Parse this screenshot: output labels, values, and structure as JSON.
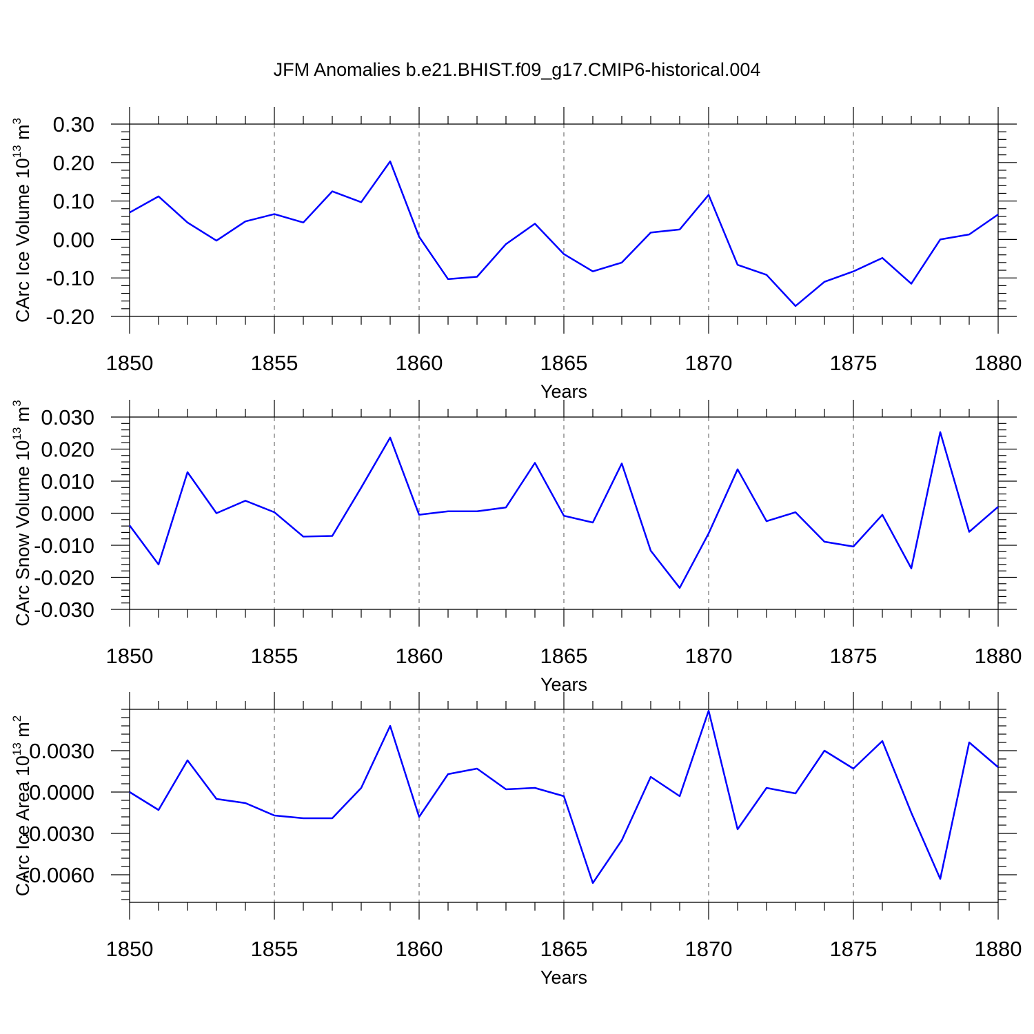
{
  "title": "JFM Anomalies b.e21.BHIST.f09_g17.CMIP6-historical.004",
  "colors": {
    "line": "#0000ff",
    "axis": "#000000",
    "grid": "#555555"
  },
  "chart_data": [
    {
      "type": "line",
      "title": "",
      "xlabel": "Years",
      "ylabel": "CArc Ice Volume 10",
      "ylabel_exp": "13",
      "ylabel_unit": "m",
      "ylabel_unit_exp": "3",
      "xlim": [
        1850,
        1880
      ],
      "ylim": [
        -0.2,
        0.3
      ],
      "xticks": [
        "1850",
        "1855",
        "1860",
        "1865",
        "1870",
        "1875",
        "1880"
      ],
      "yticks": [
        {
          "v": 0.3,
          "label": "0.30"
        },
        {
          "v": 0.2,
          "label": "0.20"
        },
        {
          "v": 0.1,
          "label": "0.10"
        },
        {
          "v": 0.0,
          "label": "0.00"
        },
        {
          "v": -0.1,
          "label": "-0.10"
        },
        {
          "v": -0.2,
          "label": "-0.20"
        }
      ],
      "grid": "vertical dashed at major x ticks",
      "x": [
        1850,
        1851,
        1852,
        1853,
        1854,
        1855,
        1856,
        1857,
        1858,
        1859,
        1860,
        1861,
        1862,
        1863,
        1864,
        1865,
        1866,
        1867,
        1868,
        1869,
        1870,
        1871,
        1872,
        1873,
        1874,
        1875,
        1876,
        1877,
        1878,
        1879,
        1880
      ],
      "series": [
        {
          "values": [
            0.07,
            0.112,
            0.044,
            -0.003,
            0.047,
            0.066,
            0.044,
            0.125,
            0.097,
            0.203,
            0.007,
            -0.103,
            -0.097,
            -0.012,
            0.041,
            -0.038,
            -0.083,
            -0.06,
            0.018,
            0.026,
            0.116,
            -0.066,
            -0.092,
            -0.173,
            -0.11,
            -0.083,
            -0.048,
            -0.115,
            0.0,
            0.013,
            0.065
          ]
        }
      ]
    },
    {
      "type": "line",
      "title": "",
      "xlabel": "Years",
      "ylabel": "CArc Snow Volume 10",
      "ylabel_exp": "13",
      "ylabel_unit": "m",
      "ylabel_unit_exp": "3",
      "xlim": [
        1850,
        1880
      ],
      "ylim": [
        -0.03,
        0.03
      ],
      "xticks": [
        "1850",
        "1855",
        "1860",
        "1865",
        "1870",
        "1875",
        "1880"
      ],
      "yticks": [
        {
          "v": 0.03,
          "label": "0.030"
        },
        {
          "v": 0.02,
          "label": "0.020"
        },
        {
          "v": 0.01,
          "label": "0.010"
        },
        {
          "v": 0.0,
          "label": "0.000"
        },
        {
          "v": -0.01,
          "label": "-0.010"
        },
        {
          "v": -0.02,
          "label": "-0.020"
        },
        {
          "v": -0.03,
          "label": "-0.030"
        }
      ],
      "grid": "vertical dashed at major x ticks",
      "x": [
        1850,
        1851,
        1852,
        1853,
        1854,
        1855,
        1856,
        1857,
        1858,
        1859,
        1860,
        1861,
        1862,
        1863,
        1864,
        1865,
        1866,
        1867,
        1868,
        1869,
        1870,
        1871,
        1872,
        1873,
        1874,
        1875,
        1876,
        1877,
        1878,
        1879,
        1880
      ],
      "series": [
        {
          "values": [
            -0.0038,
            -0.016,
            0.0128,
            0.0,
            0.0039,
            0.0003,
            -0.0073,
            -0.0071,
            0.008,
            0.0236,
            -0.0005,
            0.0006,
            0.0006,
            0.0018,
            0.0157,
            -0.0008,
            -0.0029,
            0.0155,
            -0.0117,
            -0.0233,
            -0.0063,
            0.0137,
            -0.0025,
            0.0003,
            -0.0089,
            -0.0104,
            -0.0005,
            -0.0172,
            0.0253,
            -0.0058,
            0.002
          ]
        }
      ]
    },
    {
      "type": "line",
      "title": "",
      "xlabel": "Years",
      "ylabel": "CArc Ice Area 10",
      "ylabel_exp": "13",
      "ylabel_unit": "m",
      "ylabel_unit_exp": "2",
      "xlim": [
        1850,
        1880
      ],
      "ylim": [
        -0.008,
        0.006
      ],
      "xticks": [
        "1850",
        "1855",
        "1860",
        "1865",
        "1870",
        "1875",
        "1880"
      ],
      "yticks": [
        {
          "v": 0.003,
          "label": "0.0030"
        },
        {
          "v": 0.0,
          "label": "0.0000"
        },
        {
          "v": -0.003,
          "label": "-0.0030"
        },
        {
          "v": -0.006,
          "label": "-0.0060"
        }
      ],
      "grid": "vertical dashed at major x ticks",
      "x": [
        1850,
        1851,
        1852,
        1853,
        1854,
        1855,
        1856,
        1857,
        1858,
        1859,
        1860,
        1861,
        1862,
        1863,
        1864,
        1865,
        1866,
        1867,
        1868,
        1869,
        1870,
        1871,
        1872,
        1873,
        1874,
        1875,
        1876,
        1877,
        1878,
        1879,
        1880
      ],
      "series": [
        {
          "values": [
            0.0,
            -0.0013,
            0.0023,
            -0.0005,
            -0.0008,
            -0.0017,
            -0.0019,
            -0.0019,
            0.0003,
            0.0048,
            -0.0018,
            0.0013,
            0.0017,
            0.0002,
            0.0003,
            -0.0003,
            -0.0066,
            -0.0035,
            0.0011,
            -0.0003,
            0.0059,
            -0.0027,
            0.0003,
            -0.0001,
            0.003,
            0.0017,
            0.0037,
            -0.0015,
            -0.0063,
            0.0036,
            0.0018
          ]
        }
      ]
    }
  ]
}
